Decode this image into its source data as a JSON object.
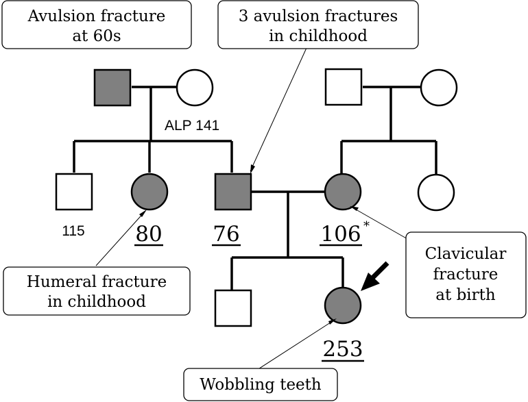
{
  "colors": {
    "affected": "#808080",
    "unaffected": "#ffffff",
    "line": "#000000"
  },
  "individuals": {
    "gp_father": {
      "sex": "male",
      "affected": true
    },
    "gp_mother": {
      "sex": "female",
      "affected": false
    },
    "ml_father": {
      "sex": "male",
      "affected": false
    },
    "ml_mother": {
      "sex": "female",
      "affected": false
    },
    "uncle": {
      "sex": "male",
      "affected": false,
      "alp": "115"
    },
    "aunt": {
      "sex": "female",
      "affected": true,
      "alp": "80"
    },
    "father": {
      "sex": "male",
      "affected": true,
      "alp": "76"
    },
    "mother": {
      "sex": "female",
      "affected": true,
      "alp": "106",
      "alp_mark": "*"
    },
    "maternal_aunt": {
      "sex": "female",
      "affected": false
    },
    "brother": {
      "sex": "male",
      "affected": false
    },
    "proband": {
      "sex": "female",
      "affected": true,
      "alp": "253",
      "indicator": "proband-arrow"
    }
  },
  "labels": {
    "gp_mother_alp": "ALP 141"
  },
  "callouts": {
    "gp_father": [
      "Avulsion fracture",
      "at 60s"
    ],
    "father": [
      "3 avulsion fractures",
      "in childhood"
    ],
    "aunt": [
      "Humeral fracture",
      "in childhood"
    ],
    "mother": [
      "Clavicular",
      "fracture",
      "at birth"
    ],
    "proband": [
      "Wobbling teeth"
    ]
  }
}
